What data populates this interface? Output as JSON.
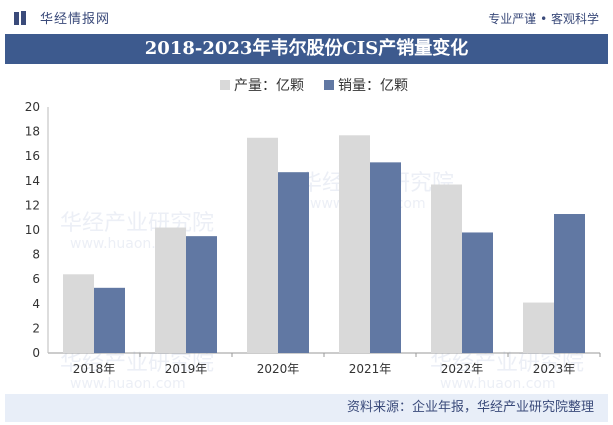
{
  "brand": "华经情报网",
  "tagline": "专业严谨 • 客观科学",
  "title": "2018-2023年韦尔股份CIS产销量变化",
  "source": "资料来源：企业年报，华经产业研究院整理",
  "watermark": "华经产业研究院",
  "watermark_url": "www.huaon.com",
  "colors": {
    "production": "#d9d9d9",
    "sales": "#6178a3",
    "brand": "#3d5a8e"
  },
  "chart_data": {
    "type": "bar",
    "categories": [
      "2018年",
      "2019年",
      "2020年",
      "2021年",
      "2022年",
      "2023年"
    ],
    "series": [
      {
        "name": "产量：亿颗",
        "values": [
          6.4,
          10.2,
          17.5,
          17.7,
          13.7,
          4.1
        ]
      },
      {
        "name": "销量：亿颗",
        "values": [
          5.3,
          9.5,
          14.7,
          15.5,
          9.8,
          11.3
        ]
      }
    ],
    "ylim": [
      0,
      20
    ],
    "yticks": [
      0,
      2,
      4,
      6,
      8,
      10,
      12,
      14,
      16,
      18,
      20
    ],
    "grid": false,
    "legend_position": "top"
  }
}
